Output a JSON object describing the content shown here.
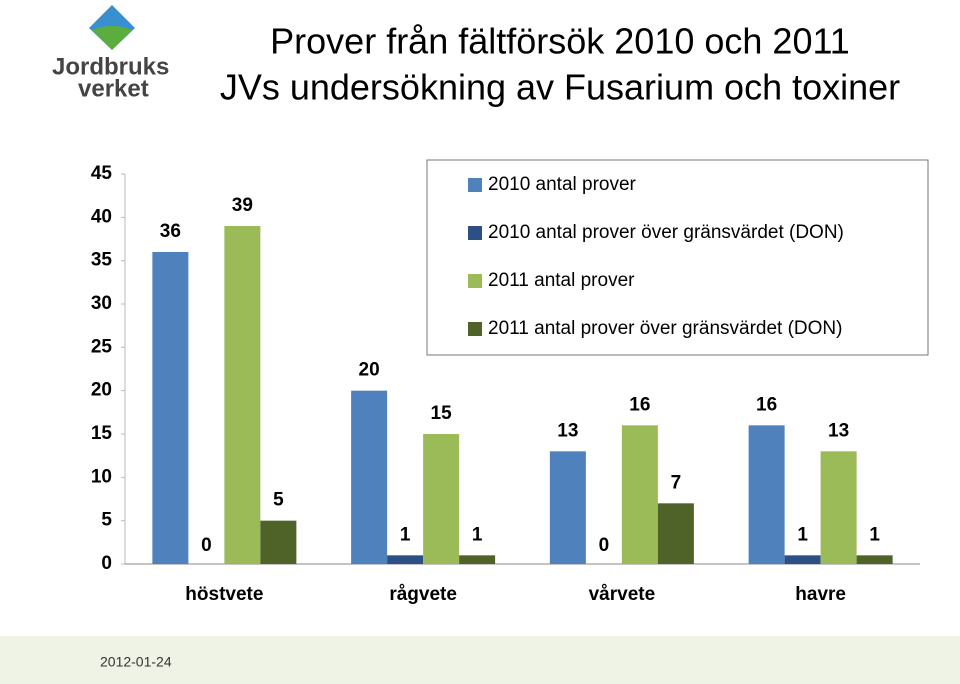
{
  "logo": {
    "line1": "Jordbruks",
    "line2": "verket"
  },
  "date": "2012-01-24",
  "chart_data": {
    "type": "bar",
    "title": "Prover från fältförsök 2010 och 2011",
    "subtitle": "JVs undersökning av Fusarium och toxiner",
    "categories": [
      "höstvete",
      "rågvete",
      "vårvete",
      "havre"
    ],
    "series": [
      {
        "name": "2010 antal prover",
        "color": "#4f81bd",
        "values": [
          36,
          20,
          13,
          16
        ]
      },
      {
        "name": "2010 antal prover över gränsvärdet (DON)",
        "color": "#2c4f85",
        "values": [
          0,
          1,
          0,
          1
        ]
      },
      {
        "name": "2011 antal prover",
        "color": "#9bbb59",
        "values": [
          39,
          15,
          16,
          13
        ]
      },
      {
        "name": "2011 antal prover över gränsvärdet (DON)",
        "color": "#4f6228",
        "values": [
          5,
          1,
          7,
          1
        ]
      }
    ],
    "ylim": [
      0,
      45
    ],
    "yticks": [
      0,
      5,
      10,
      15,
      20,
      25,
      30,
      35,
      40,
      45
    ],
    "legend": "top-right"
  }
}
